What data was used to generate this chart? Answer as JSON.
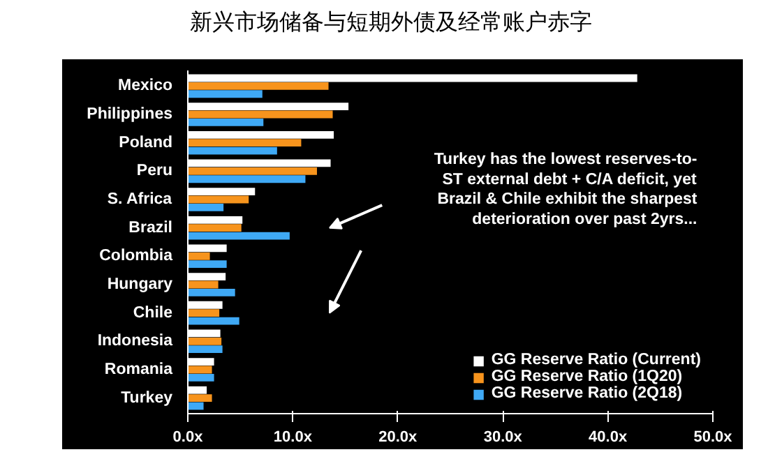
{
  "chart_data": {
    "type": "bar",
    "orientation": "horizontal",
    "title": "新兴市场储备与短期外债及经常账户赤字",
    "categories": [
      "Mexico",
      "Philippines",
      "Poland",
      "Peru",
      "S. Africa",
      "Brazil",
      "Colombia",
      "Hungary",
      "Chile",
      "Indonesia",
      "Romania",
      "Turkey"
    ],
    "series": [
      {
        "name": "GG Reserve Ratio (Current)",
        "color": "#ffffff",
        "values": [
          42.8,
          15.3,
          13.9,
          13.6,
          6.4,
          5.2,
          3.7,
          3.6,
          3.3,
          3.1,
          2.5,
          1.8
        ]
      },
      {
        "name": "GG Reserve Ratio (1Q20)",
        "color": "#f7941d",
        "values": [
          13.4,
          13.8,
          10.8,
          12.3,
          5.8,
          5.1,
          2.1,
          2.9,
          3.0,
          3.2,
          2.3,
          2.3
        ]
      },
      {
        "name": "GG Reserve Ratio (2Q18)",
        "color": "#3fa9f5",
        "values": [
          7.1,
          7.2,
          8.5,
          11.2,
          3.4,
          9.7,
          3.7,
          4.5,
          4.9,
          3.3,
          2.5,
          1.5
        ]
      }
    ],
    "xlim": [
      0,
      50
    ],
    "xticks": [
      {
        "value": 0,
        "label": "0.0x"
      },
      {
        "value": 10,
        "label": "10.0x"
      },
      {
        "value": 20,
        "label": "20.0x"
      },
      {
        "value": 30,
        "label": "30.0x"
      },
      {
        "value": 40,
        "label": "40.0x"
      },
      {
        "value": 50,
        "label": "50.0x"
      }
    ],
    "annotations": [
      "Turkey has the lowest reserves-to-\nST external debt + C/A deficit, yet\nBrazil & Chile exhibit the sharpest\ndeterioration over past 2yrs..."
    ],
    "legend": "bottom right",
    "grid": false
  }
}
